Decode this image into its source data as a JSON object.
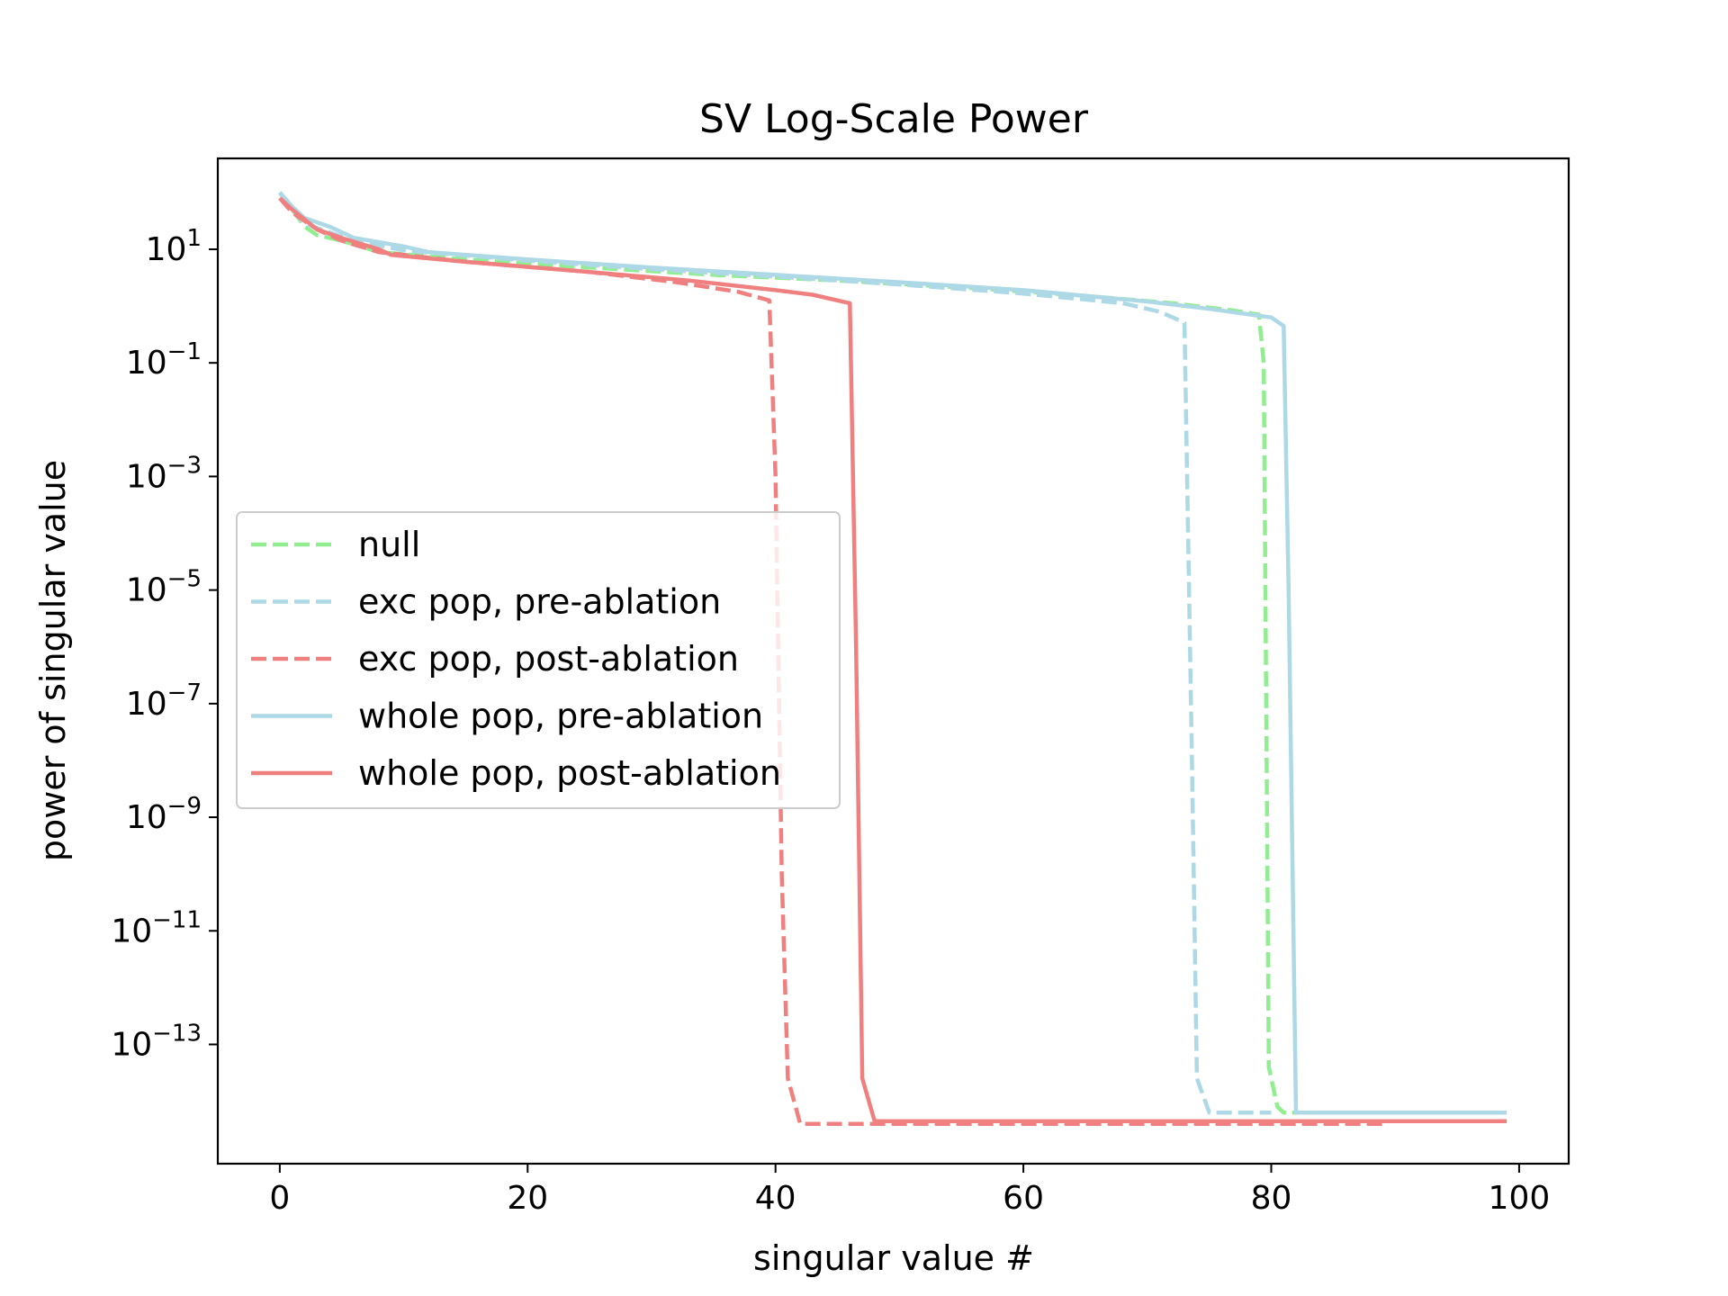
{
  "chart_data": {
    "type": "line",
    "title": "SV Log-Scale Power",
    "xlabel": "singular value #",
    "ylabel": "power of singular value",
    "y_scale": "log",
    "xlim": [
      -5,
      104
    ],
    "ylim_log10": [
      -15.1,
      2.6
    ],
    "x_ticks": [
      0,
      20,
      40,
      60,
      80,
      100
    ],
    "y_ticks_exponent": [
      1,
      -1,
      -3,
      -5,
      -7,
      -9,
      -11,
      -13
    ],
    "y_tick_base": "10",
    "grid": false,
    "legend_position": "center-left",
    "series": [
      {
        "name": "null",
        "color": "#90ee90",
        "dash": "dashed",
        "points_log10": [
          [
            0,
            2.0
          ],
          [
            1,
            1.7
          ],
          [
            2,
            1.4
          ],
          [
            3,
            1.25
          ],
          [
            5,
            1.15
          ],
          [
            8,
            0.95
          ],
          [
            15,
            0.82
          ],
          [
            25,
            0.68
          ],
          [
            35,
            0.55
          ],
          [
            45,
            0.45
          ],
          [
            55,
            0.33
          ],
          [
            65,
            0.18
          ],
          [
            72,
            0.05
          ],
          [
            77,
            -0.08
          ],
          [
            79,
            -0.15
          ],
          [
            79.4,
            -1.0
          ],
          [
            79.8,
            -13.4
          ],
          [
            80.5,
            -14.1
          ],
          [
            81,
            -14.2
          ],
          [
            89,
            -14.2
          ]
        ]
      },
      {
        "name": "exc pop, pre-ablation",
        "color": "#add8e6",
        "dash": "dashed",
        "points_log10": [
          [
            0,
            2.0
          ],
          [
            1,
            1.7
          ],
          [
            2,
            1.45
          ],
          [
            4,
            1.3
          ],
          [
            6,
            1.15
          ],
          [
            10,
            0.98
          ],
          [
            20,
            0.8
          ],
          [
            30,
            0.65
          ],
          [
            40,
            0.52
          ],
          [
            50,
            0.38
          ],
          [
            60,
            0.22
          ],
          [
            68,
            0.05
          ],
          [
            71,
            -0.1
          ],
          [
            72.6,
            -0.25
          ],
          [
            73,
            -0.3
          ],
          [
            73.6,
            -8.0
          ],
          [
            74,
            -13.6
          ],
          [
            75,
            -14.2
          ],
          [
            80,
            -14.2
          ]
        ]
      },
      {
        "name": "exc pop, post-ablation",
        "color": "#f08080",
        "dash": "dashed",
        "points_log10": [
          [
            0,
            1.9
          ],
          [
            1,
            1.65
          ],
          [
            3,
            1.35
          ],
          [
            5,
            1.15
          ],
          [
            8,
            0.95
          ],
          [
            15,
            0.78
          ],
          [
            25,
            0.6
          ],
          [
            32,
            0.42
          ],
          [
            37,
            0.25
          ],
          [
            39.5,
            0.1
          ],
          [
            40,
            -3.0
          ],
          [
            40.5,
            -10.0
          ],
          [
            41,
            -13.6
          ],
          [
            42,
            -14.4
          ],
          [
            89,
            -14.4
          ]
        ]
      },
      {
        "name": "whole pop, pre-ablation",
        "color": "#add8e6",
        "dash": "solid",
        "points_log10": [
          [
            0,
            2.0
          ],
          [
            1,
            1.75
          ],
          [
            2,
            1.55
          ],
          [
            4,
            1.4
          ],
          [
            6,
            1.2
          ],
          [
            10,
            1.05
          ],
          [
            12,
            0.95
          ],
          [
            20,
            0.82
          ],
          [
            30,
            0.68
          ],
          [
            40,
            0.55
          ],
          [
            50,
            0.42
          ],
          [
            60,
            0.28
          ],
          [
            70,
            0.08
          ],
          [
            75,
            -0.05
          ],
          [
            80,
            -0.2
          ],
          [
            81,
            -0.35
          ],
          [
            81.4,
            -5.0
          ],
          [
            82,
            -14.2
          ],
          [
            99,
            -14.2
          ]
        ]
      },
      {
        "name": "whole pop, post-ablation",
        "color": "#f08080",
        "dash": "solid",
        "points_log10": [
          [
            0,
            1.9
          ],
          [
            1,
            1.7
          ],
          [
            3,
            1.35
          ],
          [
            5,
            1.2
          ],
          [
            8,
            1.0
          ],
          [
            9,
            0.9
          ],
          [
            15,
            0.78
          ],
          [
            25,
            0.6
          ],
          [
            33,
            0.45
          ],
          [
            40,
            0.28
          ],
          [
            43,
            0.2
          ],
          [
            46,
            0.05
          ],
          [
            46.5,
            -6.0
          ],
          [
            47,
            -13.6
          ],
          [
            48,
            -14.35
          ],
          [
            99,
            -14.35
          ]
        ]
      }
    ]
  }
}
